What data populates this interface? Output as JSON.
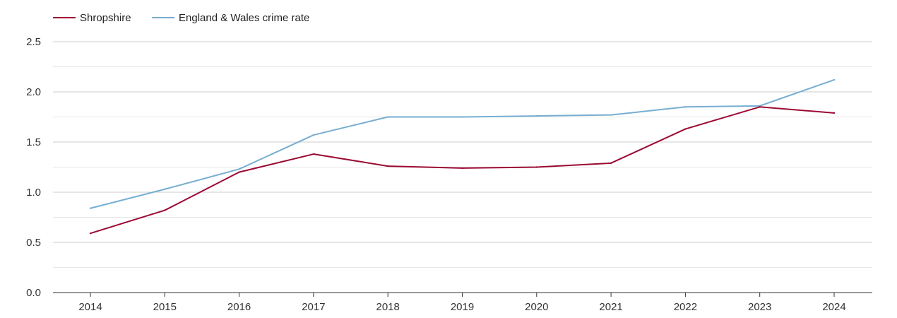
{
  "chart_data": {
    "type": "line",
    "title": "",
    "xlabel": "",
    "ylabel": "",
    "categories": [
      "2014",
      "2015",
      "2016",
      "2017",
      "2018",
      "2019",
      "2020",
      "2021",
      "2022",
      "2023",
      "2024"
    ],
    "ylim": [
      0,
      2.5
    ],
    "yticks": [
      "0.0",
      "0.5",
      "1.0",
      "1.5",
      "2.0",
      "2.5"
    ],
    "grid": true,
    "legend_position": "top-left",
    "series": [
      {
        "name": "Shropshire",
        "color": "#9b0a33",
        "values": [
          0.59,
          0.82,
          1.2,
          1.38,
          1.26,
          1.24,
          1.25,
          1.29,
          1.63,
          1.85,
          1.79
        ]
      },
      {
        "name": "England & Wales crime rate",
        "color": "#77aed1",
        "values": [
          0.84,
          1.03,
          1.23,
          1.57,
          1.75,
          1.75,
          1.76,
          1.77,
          1.85,
          1.86,
          2.12
        ]
      }
    ]
  }
}
